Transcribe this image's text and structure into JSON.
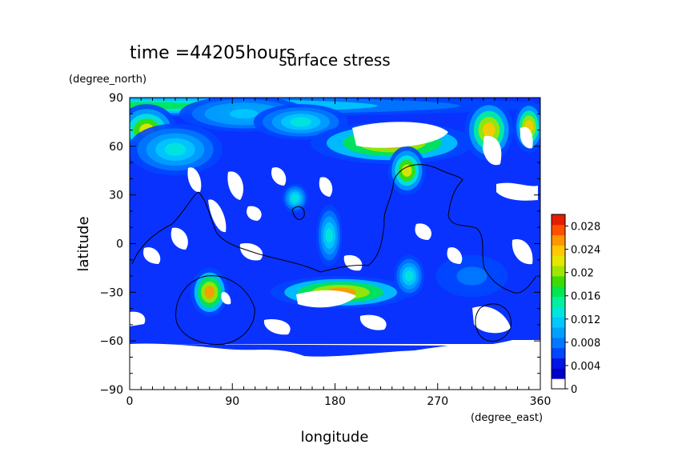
{
  "chart_data": {
    "type": "heatmap",
    "title": "surface stress",
    "subtitle": "time =44205hours",
    "xlabel": "longitude",
    "ylabel": "latitude",
    "xunit": "(degree_east)",
    "yunit": "(degree_north)",
    "xlim": [
      0,
      360
    ],
    "ylim": [
      -90,
      90
    ],
    "xticks": [
      0,
      90,
      180,
      270,
      360
    ],
    "yticks": [
      -90,
      -60,
      -30,
      0,
      30,
      60,
      90
    ],
    "colorbar": {
      "ticks": [
        0,
        0.004,
        0.008,
        0.012,
        0.016,
        0.02,
        0.024,
        0.028
      ],
      "tick_labels": [
        "0",
        "0.004",
        "0.008",
        "0.012",
        "0.016",
        "0.02",
        "0.024",
        "0.028"
      ],
      "range": [
        0,
        0.03
      ],
      "colors": [
        "#ffffff",
        "#0000c8",
        "#0014e6",
        "#0046ff",
        "#0078ff",
        "#00a0ff",
        "#00c8ff",
        "#00e6dc",
        "#00f0a0",
        "#00e650",
        "#3cdc00",
        "#a0e600",
        "#e6e600",
        "#ffc800",
        "#ff9600",
        "#ff5000",
        "#e61e00"
      ]
    },
    "field_blobs": [
      {
        "lon": 0,
        "lat": 85,
        "rx": 360,
        "ry": 6,
        "v": 0.016
      },
      {
        "lon": 15,
        "lat": 70,
        "rx": 25,
        "ry": 15,
        "v": 0.022
      },
      {
        "lon": 40,
        "lat": 58,
        "rx": 40,
        "ry": 15,
        "v": 0.014
      },
      {
        "lon": 100,
        "lat": 80,
        "rx": 55,
        "ry": 10,
        "v": 0.012
      },
      {
        "lon": 150,
        "lat": 75,
        "rx": 40,
        "ry": 10,
        "v": 0.014
      },
      {
        "lon": 230,
        "lat": 62,
        "rx": 70,
        "ry": 12,
        "v": 0.026
      },
      {
        "lon": 315,
        "lat": 70,
        "rx": 20,
        "ry": 18,
        "v": 0.024
      },
      {
        "lon": 350,
        "lat": 72,
        "rx": 12,
        "ry": 15,
        "v": 0.024
      },
      {
        "lon": 243,
        "lat": 45,
        "rx": 15,
        "ry": 14,
        "v": 0.022
      },
      {
        "lon": 145,
        "lat": 28,
        "rx": 10,
        "ry": 8,
        "v": 0.014
      },
      {
        "lon": 175,
        "lat": 5,
        "rx": 10,
        "ry": 18,
        "v": 0.014
      },
      {
        "lon": 70,
        "lat": -30,
        "rx": 15,
        "ry": 14,
        "v": 0.026
      },
      {
        "lon": 185,
        "lat": -30,
        "rx": 60,
        "ry": 9,
        "v": 0.026
      },
      {
        "lon": 245,
        "lat": -20,
        "rx": 12,
        "ry": 12,
        "v": 0.014
      },
      {
        "lon": 300,
        "lat": -20,
        "rx": 30,
        "ry": 12,
        "v": 0.008
      }
    ]
  }
}
